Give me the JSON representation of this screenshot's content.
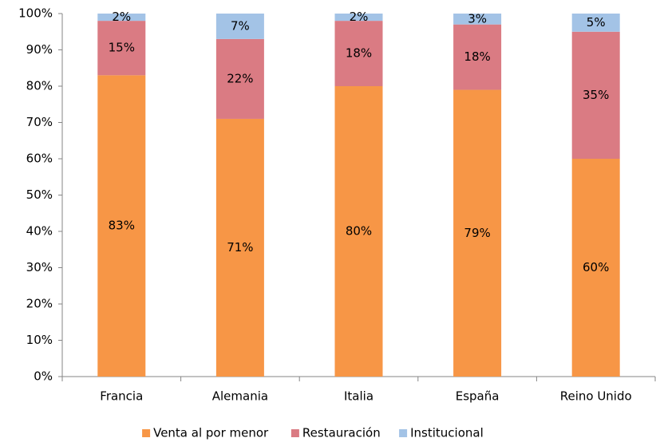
{
  "chart_data": {
    "type": "stacked_bar",
    "categories": [
      "Francia",
      "Alemania",
      "Italia",
      "España",
      "Reino Unido"
    ],
    "series": [
      {
        "name": "Venta al por menor",
        "color": "#f79646",
        "values": [
          83,
          71,
          80,
          79,
          60
        ],
        "value_labels": [
          "83%",
          "71%",
          "80%",
          "79%",
          "60%"
        ]
      },
      {
        "name": "Restauración",
        "color": "#da7b83",
        "values": [
          15,
          22,
          18,
          18,
          35
        ],
        "value_labels": [
          "15%",
          "22%",
          "18%",
          "18%",
          "35%"
        ]
      },
      {
        "name": "Institucional",
        "color": "#a3c3e6",
        "values": [
          2,
          7,
          2,
          3,
          5
        ],
        "value_labels": [
          "2%",
          "7%",
          "2%",
          "3%",
          "5%"
        ]
      }
    ],
    "ylim": [
      0,
      100
    ],
    "yticks": [
      {
        "value": 0,
        "label": "0%"
      },
      {
        "value": 10,
        "label": "10%"
      },
      {
        "value": 20,
        "label": "20%"
      },
      {
        "value": 30,
        "label": "30%"
      },
      {
        "value": 40,
        "label": "40%"
      },
      {
        "value": 50,
        "label": "50%"
      },
      {
        "value": 60,
        "label": "60%"
      },
      {
        "value": 70,
        "label": "70%"
      },
      {
        "value": 80,
        "label": "80%"
      },
      {
        "value": 90,
        "label": "90%"
      },
      {
        "value": 100,
        "label": "100%"
      }
    ],
    "grid": false,
    "legend": "bottom"
  }
}
